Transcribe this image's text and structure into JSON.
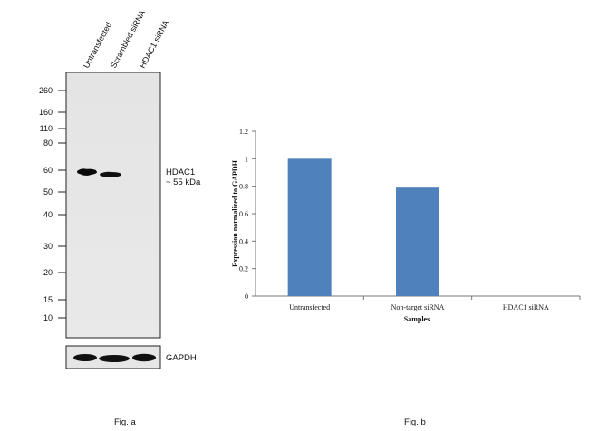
{
  "western_blot": {
    "lane_labels": [
      "Untransfected",
      "Scrambled siRNA",
      "HDAC1 siRNA"
    ],
    "mw_markers": [
      "260",
      "160",
      "110",
      "80",
      "60",
      "50",
      "40",
      "30",
      "20",
      "15",
      "10"
    ],
    "target_label_line1": "HDAC1",
    "target_label_line2": "~ 55 kDa",
    "control_label": "GAPDH",
    "fig_label": "Fig. a"
  },
  "bar_panel": {
    "fig_label": "Fig. b",
    "bar_color": "#4f81bd"
  },
  "chart_data": [
    {
      "type": "bar",
      "title": "",
      "categories": [
        "Untransfected",
        "Non-target siRNA",
        "HDAC1 siRNA"
      ],
      "values": [
        1.0,
        0.79,
        0.0
      ],
      "xlabel": "Samples",
      "ylabel": "Expression normalized to GAPDH",
      "ylim": [
        0,
        1.2
      ],
      "yticks": [
        "0",
        "0.2",
        "0.4",
        "0.6",
        "0.8",
        "1",
        "1.2"
      ],
      "grid": false,
      "legend": "none"
    }
  ]
}
